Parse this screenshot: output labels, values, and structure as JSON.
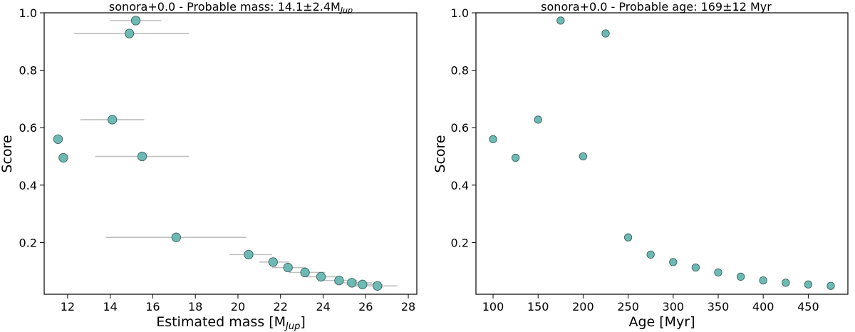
{
  "colors": {
    "marker_fill": "#6db9b4",
    "marker_edge": "#3c6462",
    "errorbar": "#bfbfbf",
    "axes": "#000000"
  },
  "chart_data": [
    {
      "type": "scatter",
      "title_prefix": "sonora+0.0 - Probable mass: 14.1±2.4M",
      "title_sub": "Jup",
      "xlabel_prefix": "Estimated mass [M",
      "xlabel_sub": "Jup",
      "xlabel_suffix": "]",
      "ylabel": "Score",
      "xlim": [
        10.9,
        28.4
      ],
      "ylim": [
        0.02,
        1.0
      ],
      "xticks": [
        12,
        14,
        16,
        18,
        20,
        22,
        24,
        26,
        28
      ],
      "xtick_labels": [
        "12",
        "14",
        "16",
        "18",
        "20",
        "22",
        "24",
        "26",
        "28"
      ],
      "yticks": [
        0.2,
        0.4,
        0.6,
        0.8,
        1.0
      ],
      "ytick_labels": [
        "0.2",
        "0.4",
        "0.6",
        "0.8",
        "1.0"
      ],
      "grid": false,
      "points": [
        {
          "x": 11.55,
          "y": 0.56,
          "xerr_low": null,
          "xerr_high": null
        },
        {
          "x": 11.8,
          "y": 0.495,
          "xerr_low": null,
          "xerr_high": null
        },
        {
          "x": 14.1,
          "y": 0.628,
          "xerr_low": 12.6,
          "xerr_high": 15.6
        },
        {
          "x": 15.2,
          "y": 0.973,
          "xerr_low": 14.0,
          "xerr_high": 16.4
        },
        {
          "x": 14.9,
          "y": 0.928,
          "xerr_low": 12.3,
          "xerr_high": 17.7
        },
        {
          "x": 15.5,
          "y": 0.5,
          "xerr_low": 13.3,
          "xerr_high": 17.7
        },
        {
          "x": 17.1,
          "y": 0.218,
          "xerr_low": 13.8,
          "xerr_high": 20.4
        },
        {
          "x": 20.5,
          "y": 0.158,
          "xerr_low": 19.6,
          "xerr_high": 21.6
        },
        {
          "x": 21.65,
          "y": 0.132,
          "xerr_low": 21.0,
          "xerr_high": 22.4
        },
        {
          "x": 22.35,
          "y": 0.113,
          "xerr_low": 21.6,
          "xerr_high": 23.2
        },
        {
          "x": 23.15,
          "y": 0.096,
          "xerr_low": 22.4,
          "xerr_high": 24.1
        },
        {
          "x": 23.9,
          "y": 0.081,
          "xerr_low": 23.1,
          "xerr_high": 24.8
        },
        {
          "x": 24.75,
          "y": 0.068,
          "xerr_low": 24.0,
          "xerr_high": 25.6
        },
        {
          "x": 25.35,
          "y": 0.06,
          "xerr_low": 24.5,
          "xerr_high": 26.3
        },
        {
          "x": 25.85,
          "y": 0.054,
          "xerr_low": 25.1,
          "xerr_high": 26.8
        },
        {
          "x": 26.55,
          "y": 0.049,
          "xerr_low": 25.5,
          "xerr_high": 27.5
        }
      ]
    },
    {
      "type": "scatter",
      "title": "sonora+0.0 - Probable age: 169±12 Myr",
      "xlabel": "Age [Myr]",
      "ylabel": "Score",
      "xlim": [
        81,
        494
      ],
      "ylim": [
        0.02,
        1.0
      ],
      "xticks": [
        100,
        150,
        200,
        250,
        300,
        350,
        400,
        450
      ],
      "xtick_labels": [
        "100",
        "150",
        "200",
        "250",
        "300",
        "350",
        "400",
        "450"
      ],
      "yticks": [
        0.2,
        0.4,
        0.6,
        0.8,
        1.0
      ],
      "ytick_labels": [
        "0.2",
        "0.4",
        "0.6",
        "0.8",
        "1.0"
      ],
      "grid": false,
      "points": [
        {
          "x": 100,
          "y": 0.56
        },
        {
          "x": 125,
          "y": 0.495
        },
        {
          "x": 150,
          "y": 0.628
        },
        {
          "x": 175,
          "y": 0.973
        },
        {
          "x": 200,
          "y": 0.5
        },
        {
          "x": 225,
          "y": 0.928
        },
        {
          "x": 250,
          "y": 0.218
        },
        {
          "x": 275,
          "y": 0.158
        },
        {
          "x": 300,
          "y": 0.132
        },
        {
          "x": 325,
          "y": 0.113
        },
        {
          "x": 350,
          "y": 0.096
        },
        {
          "x": 375,
          "y": 0.081
        },
        {
          "x": 400,
          "y": 0.068
        },
        {
          "x": 425,
          "y": 0.06
        },
        {
          "x": 450,
          "y": 0.054
        },
        {
          "x": 475,
          "y": 0.049
        }
      ]
    }
  ]
}
